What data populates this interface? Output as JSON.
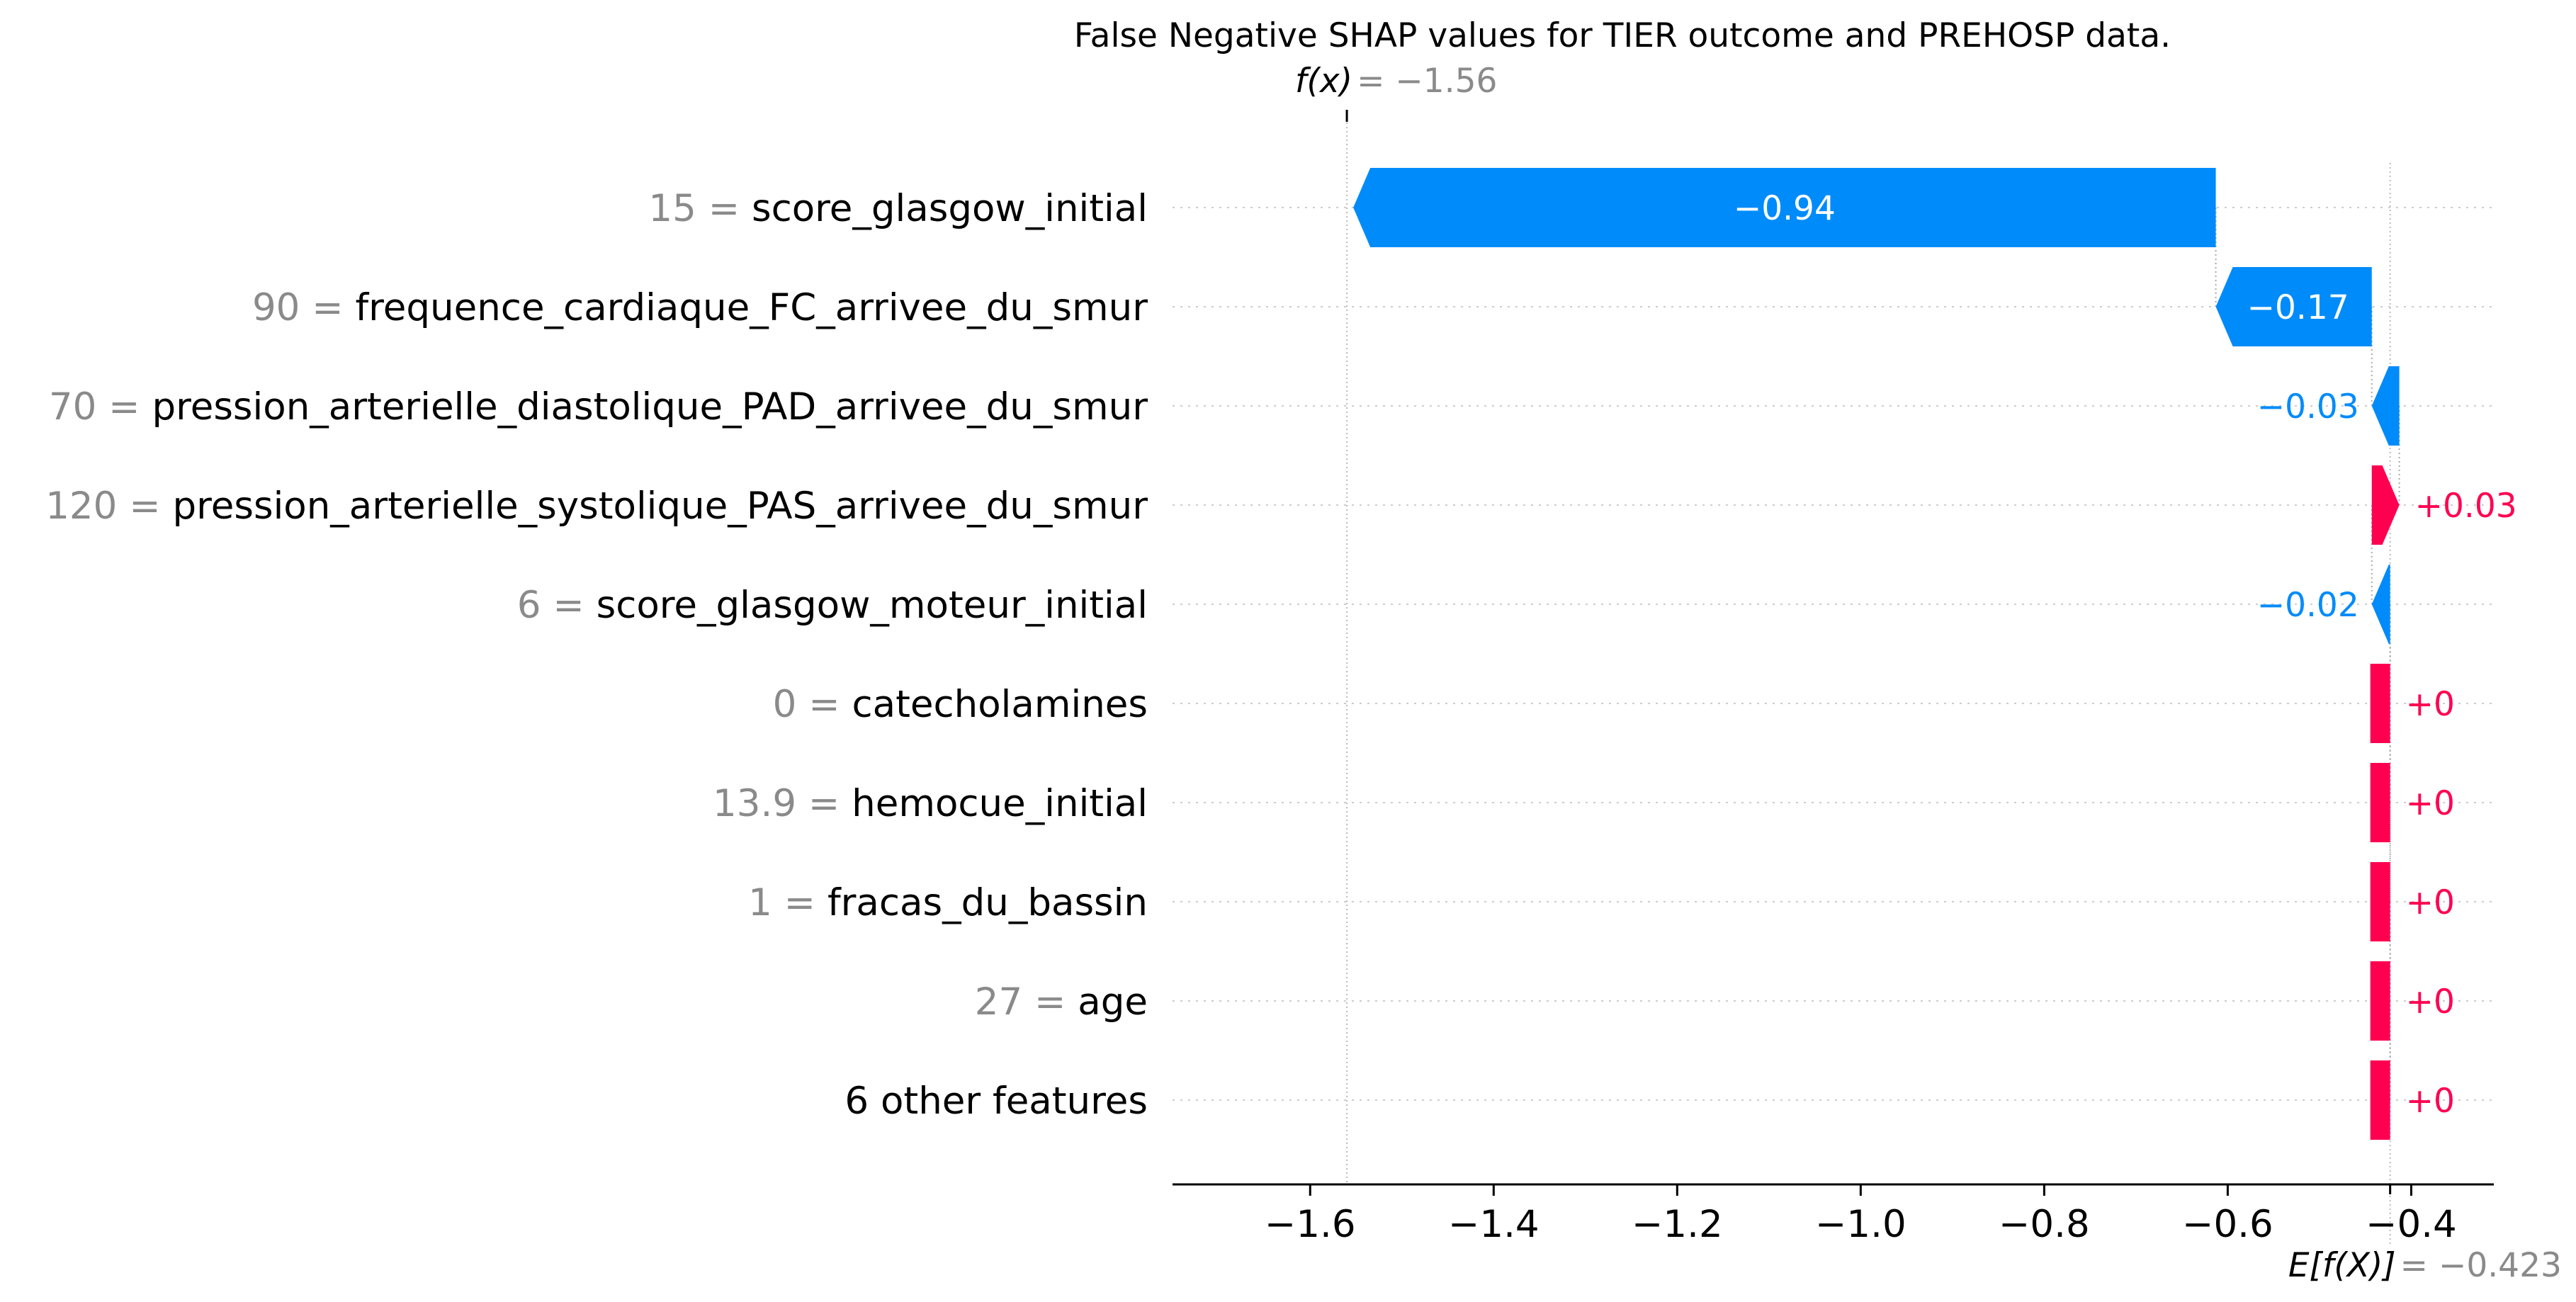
{
  "chart_data": {
    "type": "bar",
    "subtype": "shap-waterfall",
    "title": "False Negative SHAP values for TIER outcome and PREHOSP data.",
    "base_value": -0.423,
    "output_value": -1.56,
    "fx_label": "f(x)",
    "fx_value_text": "= −1.56",
    "efx_label": "E[f(X)]",
    "efx_value_text": "= −0.423",
    "xlim": [
      -1.75,
      -0.31
    ],
    "xticks": [
      -1.6,
      -1.4,
      -1.2,
      -1.0,
      -0.8,
      -0.6,
      -0.4
    ],
    "xtick_labels": [
      "−1.6",
      "−1.4",
      "−1.2",
      "−1.0",
      "−0.8",
      "−0.6",
      "−0.4"
    ],
    "features": [
      {
        "value": "15",
        "name": "score_glasgow_initial",
        "shap": -0.94,
        "label": "−0.94"
      },
      {
        "value": "90",
        "name": "frequence_cardiaque_FC_arrivee_du_smur",
        "shap": -0.17,
        "label": "−0.17"
      },
      {
        "value": "70",
        "name": "pression_arterielle_diastolique_PAD_arrivee_du_smur",
        "shap": -0.03,
        "label": "−0.03"
      },
      {
        "value": "120",
        "name": "pression_arterielle_systolique_PAS_arrivee_du_smur",
        "shap": 0.03,
        "label": "+0.03"
      },
      {
        "value": "6",
        "name": "score_glasgow_moteur_initial",
        "shap": -0.02,
        "label": "−0.02"
      },
      {
        "value": "0",
        "name": "catecholamines",
        "shap": 0.0,
        "label": "+0"
      },
      {
        "value": "13.9",
        "name": "hemocue_initial",
        "shap": 0.0,
        "label": "+0"
      },
      {
        "value": "1",
        "name": "fracas_du_bassin",
        "shap": 0.0,
        "label": "+0"
      },
      {
        "value": "27",
        "name": "age",
        "shap": 0.0,
        "label": "+0"
      },
      {
        "value": "",
        "name": "6 other features",
        "shap": 0.0,
        "label": "+0"
      }
    ],
    "colors": {
      "negative": "#008bfb",
      "positive": "#ff0051",
      "grey_text": "#8a8a8a",
      "grid": "#cccccc"
    }
  }
}
